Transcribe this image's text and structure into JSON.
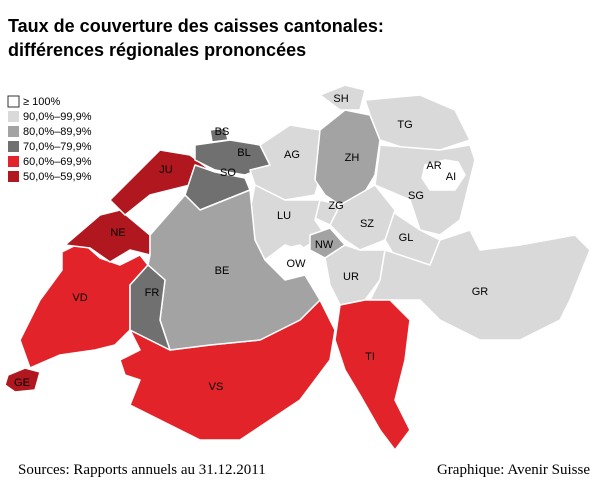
{
  "header": {
    "title_lines": [
      "Taux de couverture des caisses cantonales:",
      "différences régionales prononcées"
    ]
  },
  "legend": [
    {
      "label": "≥ 100%",
      "color": "#ffffff"
    },
    {
      "label": "90,0%–99,9%",
      "color": "#d9d9d9"
    },
    {
      "label": "80,0%–89,9%",
      "color": "#a3a3a3"
    },
    {
      "label": "70,0%–79,9%",
      "color": "#707070"
    },
    {
      "label": "60,0%–69,9%",
      "color": "#e3232a"
    },
    {
      "label": "50,0%–59,9%",
      "color": "#b0171f"
    }
  ],
  "cantons": [
    {
      "label": "GE",
      "color": "#b0171f"
    },
    {
      "label": "VD",
      "color": "#e3232a"
    },
    {
      "label": "NE",
      "color": "#b0171f"
    },
    {
      "label": "JU",
      "color": "#b0171f"
    },
    {
      "label": "BS",
      "color": "#707070"
    },
    {
      "label": "BL",
      "color": "#707070"
    },
    {
      "label": "SO",
      "color": "#707070"
    },
    {
      "label": "AG",
      "color": "#d9d9d9"
    },
    {
      "label": "ZH",
      "color": "#a3a3a3"
    },
    {
      "label": "SH",
      "color": "#d9d9d9"
    },
    {
      "label": "TG",
      "color": "#d9d9d9"
    },
    {
      "label": "SG",
      "color": "#d9d9d9"
    },
    {
      "label": "AR",
      "color": "#ffffff"
    },
    {
      "label": "AI",
      "color": "#ffffff"
    },
    {
      "label": "GL",
      "color": "#d9d9d9"
    },
    {
      "label": "SZ",
      "color": "#d9d9d9"
    },
    {
      "label": "ZG",
      "color": "#d9d9d9"
    },
    {
      "label": "LU",
      "color": "#d9d9d9"
    },
    {
      "label": "NW",
      "color": "#a3a3a3"
    },
    {
      "label": "OW",
      "color": "#ffffff"
    },
    {
      "label": "UR",
      "color": "#d9d9d9"
    },
    {
      "label": "GR",
      "color": "#d9d9d9"
    },
    {
      "label": "TI",
      "color": "#e3232a"
    },
    {
      "label": "VS",
      "color": "#e3232a"
    },
    {
      "label": "BE",
      "color": "#a3a3a3"
    },
    {
      "label": "FR",
      "color": "#707070"
    }
  ],
  "footer": {
    "sources": "Sources: Rapports annuels au 31.12.2011",
    "credit": "Graphique: Avenir Suisse"
  }
}
